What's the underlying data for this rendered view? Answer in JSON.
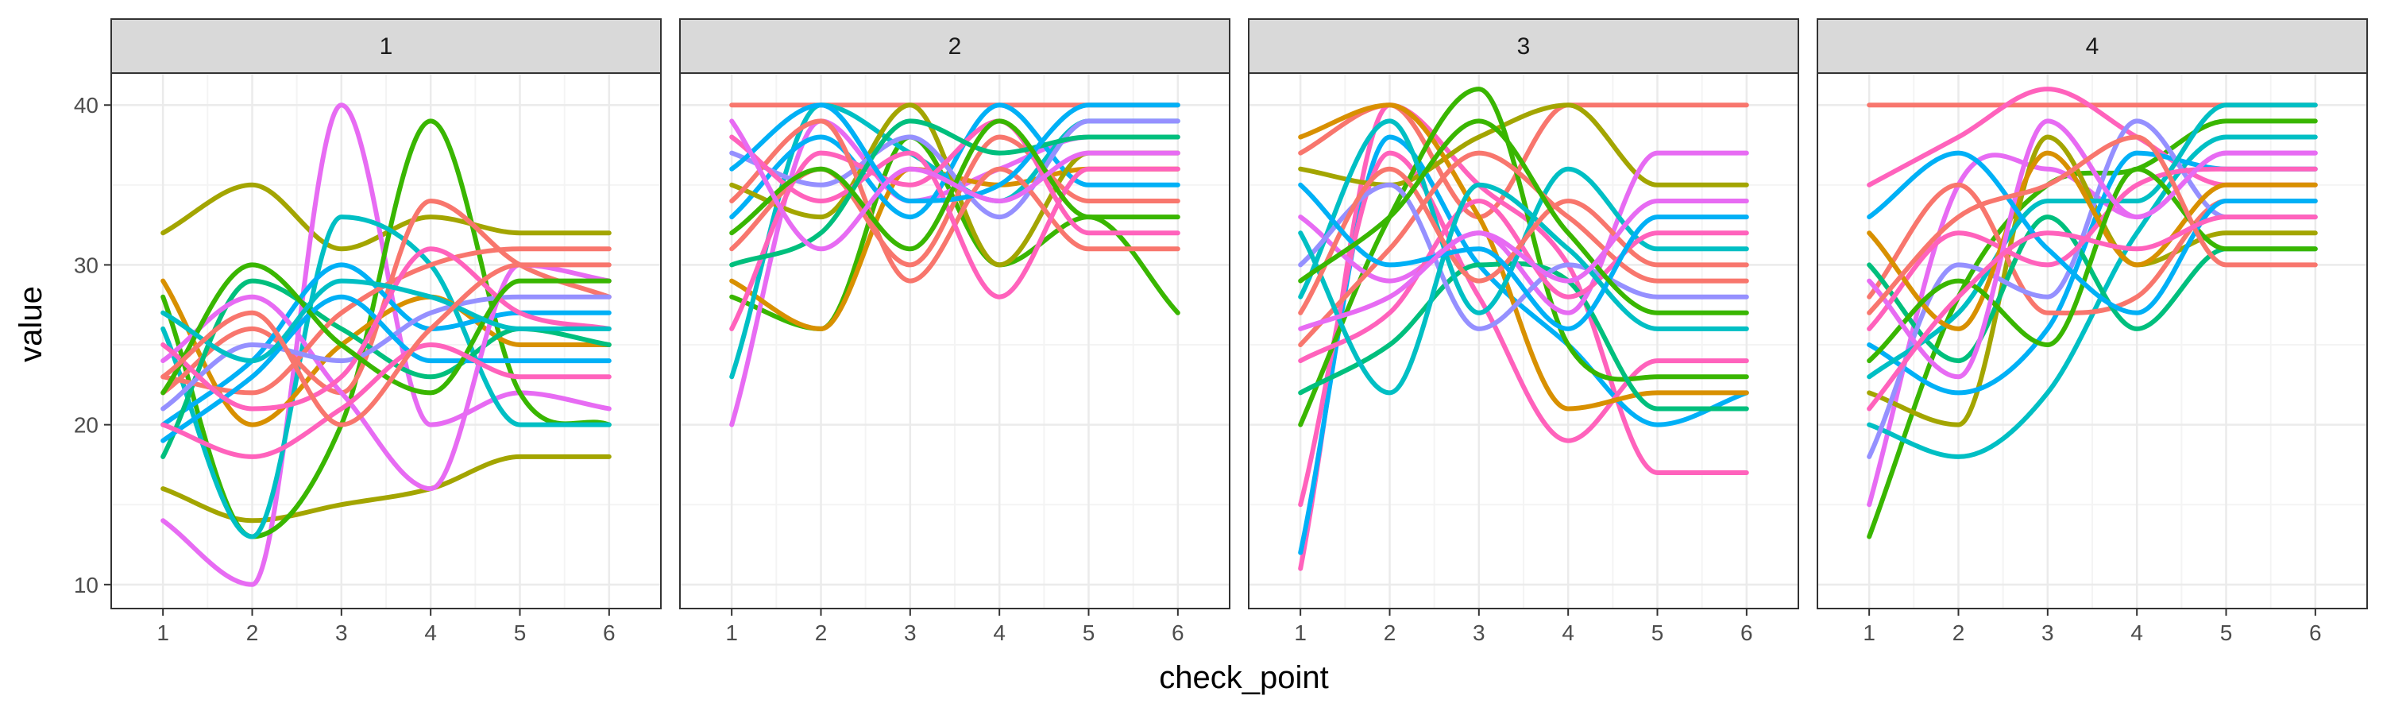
{
  "chart_data": {
    "type": "line",
    "xlabel": "check_point",
    "ylabel": "value",
    "x": [
      1,
      2,
      3,
      4,
      5,
      6
    ],
    "xlim": [
      0.42,
      6.58
    ],
    "ylim": [
      8.5,
      42.0
    ],
    "x_ticks": [
      "1",
      "2",
      "3",
      "4",
      "5",
      "6"
    ],
    "y_ticks": [
      10,
      20,
      30,
      40
    ],
    "grid": true,
    "legend": "none",
    "colors": {
      "panel_border": "#333333",
      "strip_fill": "#d9d9d9",
      "grid_major": "#ebebeb",
      "grid_minor": "#f4f4f4",
      "series_palette": [
        "#F8766D",
        "#D89000",
        "#A3A500",
        "#39B600",
        "#00BF7D",
        "#00BFC4",
        "#00B0F6",
        "#9590FF",
        "#E76BF3",
        "#FF62BC"
      ]
    },
    "panels": [
      {
        "label": "1",
        "series": [
          {
            "values": [
              32,
              35,
              31,
              33,
              32,
              32
            ],
            "color": "#A3A500"
          },
          {
            "values": [
              16,
              14,
              15,
              16,
              18,
              18
            ],
            "color": "#A3A500"
          },
          {
            "values": [
              14,
              10,
              40,
              20,
              22,
              21
            ],
            "color": "#E76BF3"
          },
          {
            "values": [
              28,
              13,
              20,
              39,
              22,
              20
            ],
            "color": "#39B600"
          },
          {
            "values": [
              26,
              13,
              33,
              30,
              20,
              20
            ],
            "color": "#00BFC4"
          },
          {
            "values": [
              29,
              20,
              25,
              28,
              25,
              25
            ],
            "color": "#D89000"
          },
          {
            "values": [
              22,
              26,
              22,
              34,
              30,
              28
            ],
            "color": "#F8766D"
          },
          {
            "values": [
              20,
              24,
              30,
              26,
              27,
              27
            ],
            "color": "#00B0F6"
          },
          {
            "values": [
              18,
              29,
              26,
              23,
              26,
              25
            ],
            "color": "#00BF7D"
          },
          {
            "values": [
              24,
              28,
              22,
              16,
              30,
              29
            ],
            "color": "#E76BF3"
          },
          {
            "values": [
              23,
              22,
              27,
              30,
              31,
              31
            ],
            "color": "#F8766D"
          },
          {
            "values": [
              21,
              25,
              24,
              27,
              28,
              28
            ],
            "color": "#9590FF"
          },
          {
            "values": [
              19,
              23,
              28,
              24,
              24,
              24
            ],
            "color": "#00B0F6"
          },
          {
            "values": [
              25,
              21,
              23,
              31,
              27,
              26
            ],
            "color": "#FF62BC"
          },
          {
            "values": [
              22,
              30,
              25,
              22,
              29,
              29
            ],
            "color": "#39B600"
          },
          {
            "values": [
              20,
              18,
              21,
              25,
              23,
              23
            ],
            "color": "#FF62BC"
          },
          {
            "values": [
              27,
              24,
              29,
              28,
              26,
              26
            ],
            "color": "#00BFC4"
          },
          {
            "values": [
              23,
              27,
              20,
              26,
              30,
              30
            ],
            "color": "#F8766D"
          }
        ]
      },
      {
        "label": "2",
        "series": [
          {
            "values": [
              40,
              40,
              40,
              40,
              40,
              40
            ],
            "color": "#F8766D"
          },
          {
            "values": [
              28,
              26,
              38,
              30,
              33,
              27
            ],
            "color": "#39B600"
          },
          {
            "values": [
              20,
              39,
              34,
              36,
              38,
              38
            ],
            "color": "#E76BF3"
          },
          {
            "values": [
              29,
              26,
              36,
              35,
              36,
              36
            ],
            "color": "#D89000"
          },
          {
            "values": [
              23,
              40,
              37,
              34,
              39,
              39
            ],
            "color": "#00BFC4"
          },
          {
            "values": [
              33,
              38,
              33,
              40,
              35,
              35
            ],
            "color": "#00B0F6"
          },
          {
            "values": [
              35,
              33,
              40,
              30,
              37,
              37
            ],
            "color": "#A3A500"
          },
          {
            "values": [
              31,
              36,
              30,
              38,
              34,
              34
            ],
            "color": "#F8766D"
          },
          {
            "values": [
              37,
              35,
              38,
              33,
              39,
              39
            ],
            "color": "#9590FF"
          },
          {
            "values": [
              26,
              37,
              35,
              39,
              32,
              32
            ],
            "color": "#FF62BC"
          },
          {
            "values": [
              34,
              39,
              29,
              36,
              31,
              31
            ],
            "color": "#F8766D"
          },
          {
            "values": [
              38,
              34,
              37,
              28,
              36,
              36
            ],
            "color": "#FF62BC"
          },
          {
            "values": [
              30,
              32,
              39,
              37,
              38,
              38
            ],
            "color": "#00BF7D"
          },
          {
            "values": [
              36,
              40,
              34,
              35,
              40,
              40
            ],
            "color": "#00B0F6"
          },
          {
            "values": [
              32,
              36,
              31,
              39,
              33,
              33
            ],
            "color": "#39B600"
          },
          {
            "values": [
              39,
              31,
              36,
              34,
              37,
              37
            ],
            "color": "#E76BF3"
          }
        ]
      },
      {
        "label": "3",
        "series": [
          {
            "values": [
              37,
              40,
              33,
              40,
              40,
              40
            ],
            "color": "#F8766D"
          },
          {
            "values": [
              11,
              40,
              35,
              30,
              17,
              17
            ],
            "color": "#FF62BC"
          },
          {
            "values": [
              12,
              38,
              30,
              25,
              20,
              22
            ],
            "color": "#00B0F6"
          },
          {
            "values": [
              15,
              37,
              28,
              19,
              24,
              24
            ],
            "color": "#FF62BC"
          },
          {
            "values": [
              36,
              35,
              38,
              40,
              35,
              35
            ],
            "color": "#A3A500"
          },
          {
            "values": [
              38,
              40,
              33,
              21,
              22,
              22
            ],
            "color": "#D89000"
          },
          {
            "values": [
              20,
              33,
              41,
              25,
              23,
              23
            ],
            "color": "#39B600"
          },
          {
            "values": [
              22,
              25,
              30,
              29,
              21,
              21
            ],
            "color": "#00BF7D"
          },
          {
            "values": [
              33,
              29,
              32,
              27,
              37,
              37
            ],
            "color": "#E76BF3"
          },
          {
            "values": [
              28,
              39,
              27,
              36,
              31,
              31
            ],
            "color": "#00BFC4"
          },
          {
            "values": [
              25,
              31,
              37,
              33,
              29,
              29
            ],
            "color": "#F8766D"
          },
          {
            "values": [
              30,
              35,
              26,
              30,
              28,
              28
            ],
            "color": "#9590FF"
          },
          {
            "values": [
              24,
              27,
              34,
              28,
              32,
              32
            ],
            "color": "#FF62BC"
          },
          {
            "values": [
              32,
              22,
              35,
              31,
              26,
              26
            ],
            "color": "#00BFC4"
          },
          {
            "values": [
              27,
              36,
              29,
              34,
              30,
              30
            ],
            "color": "#F8766D"
          },
          {
            "values": [
              35,
              30,
              31,
              26,
              33,
              33
            ],
            "color": "#00B0F6"
          },
          {
            "values": [
              29,
              33,
              39,
              32,
              27,
              27
            ],
            "color": "#39B600"
          },
          {
            "values": [
              26,
              28,
              32,
              29,
              34,
              34
            ],
            "color": "#E76BF3"
          }
        ]
      },
      {
        "label": "4",
        "series": [
          {
            "values": [
              40,
              40,
              40,
              40,
              40,
              40
            ],
            "color": "#F8766D"
          },
          {
            "values": [
              13,
              28,
              35,
              36,
              39,
              39
            ],
            "color": "#39B600"
          },
          {
            "values": [
              15,
              35,
              36,
              33,
              37,
              37
            ],
            "color": "#E76BF3"
          },
          {
            "values": [
              35,
              38,
              41,
              38,
              35,
              35
            ],
            "color": "#FF62BC"
          },
          {
            "values": [
              20,
              18,
              22,
              32,
              38,
              38
            ],
            "color": "#00BFC4"
          },
          {
            "values": [
              22,
              20,
              38,
              30,
              32,
              32
            ],
            "color": "#A3A500"
          },
          {
            "values": [
              25,
              22,
              26,
              37,
              36,
              36
            ],
            "color": "#00B0F6"
          },
          {
            "values": [
              28,
              35,
              27,
              28,
              34,
              34
            ],
            "color": "#F8766D"
          },
          {
            "values": [
              30,
              24,
              33,
              26,
              31,
              31
            ],
            "color": "#00BF7D"
          },
          {
            "values": [
              18,
              30,
              28,
              39,
              33,
              33
            ],
            "color": "#9590FF"
          },
          {
            "values": [
              23,
              27,
              34,
              34,
              40,
              40
            ],
            "color": "#00BFC4"
          },
          {
            "values": [
              26,
              32,
              30,
              35,
              36,
              36
            ],
            "color": "#FF62BC"
          },
          {
            "values": [
              32,
              26,
              37,
              30,
              35,
              35
            ],
            "color": "#D89000"
          },
          {
            "values": [
              24,
              29,
              25,
              36,
              31,
              31
            ],
            "color": "#39B600"
          },
          {
            "values": [
              29,
              23,
              39,
              33,
              37,
              37
            ],
            "color": "#E76BF3"
          },
          {
            "values": [
              33,
              37,
              31,
              27,
              34,
              34
            ],
            "color": "#00B0F6"
          },
          {
            "values": [
              27,
              33,
              35,
              38,
              30,
              30
            ],
            "color": "#F8766D"
          },
          {
            "values": [
              21,
              28,
              32,
              31,
              33,
              33
            ],
            "color": "#FF62BC"
          }
        ]
      }
    ]
  }
}
